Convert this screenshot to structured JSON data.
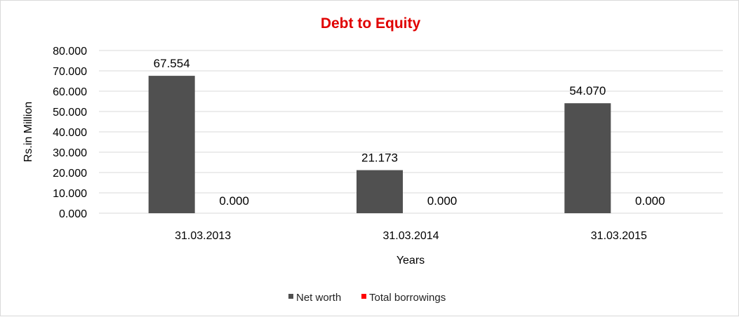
{
  "chart_data": {
    "type": "bar",
    "title": "Debt to Equity",
    "xlabel": "Years",
    "ylabel": "Rs.in Million",
    "categories": [
      "31.03.2013",
      "31.03.2014",
      "31.03.2015"
    ],
    "series": [
      {
        "name": "Net worth",
        "values": [
          67.554,
          21.173,
          54.07
        ],
        "labels": [
          "67.554",
          "21.173",
          "54.070"
        ],
        "color": "#505050"
      },
      {
        "name": "Total borrowings",
        "values": [
          0,
          0,
          0
        ],
        "labels": [
          "0.000",
          "0.000",
          "0.000"
        ],
        "color": "#ff0000"
      }
    ],
    "ylim": [
      0,
      80
    ],
    "yticks": [
      "0.000",
      "10.000",
      "20.000",
      "30.000",
      "40.000",
      "50.000",
      "60.000",
      "70.000",
      "80.000"
    ],
    "grid": true,
    "legend_position": "bottom",
    "title_color": "#e00000",
    "gridline_color": "#d9d9d9"
  }
}
